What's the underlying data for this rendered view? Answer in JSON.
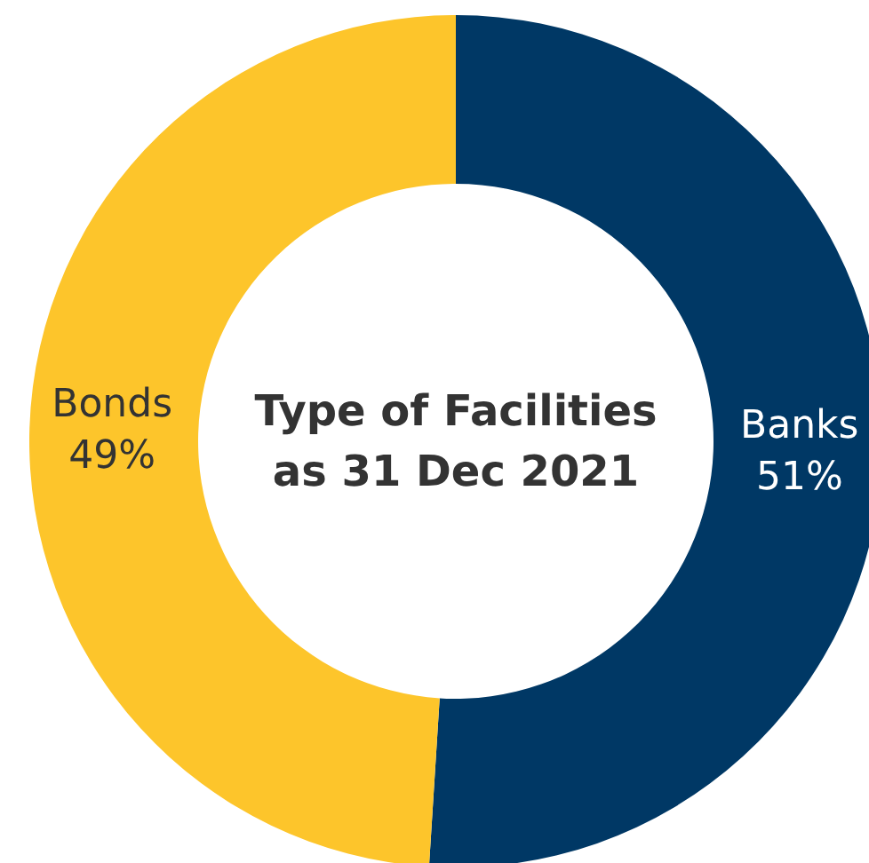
{
  "chart_data": {
    "type": "donut",
    "title": "Type of Facilities\nas 31 Dec 2021",
    "categories": [
      "Banks",
      "Bonds"
    ],
    "values": [
      51,
      49
    ],
    "colors": [
      "#003865",
      "#fdc52b"
    ],
    "value_labels": [
      "51%",
      "49%"
    ]
  }
}
